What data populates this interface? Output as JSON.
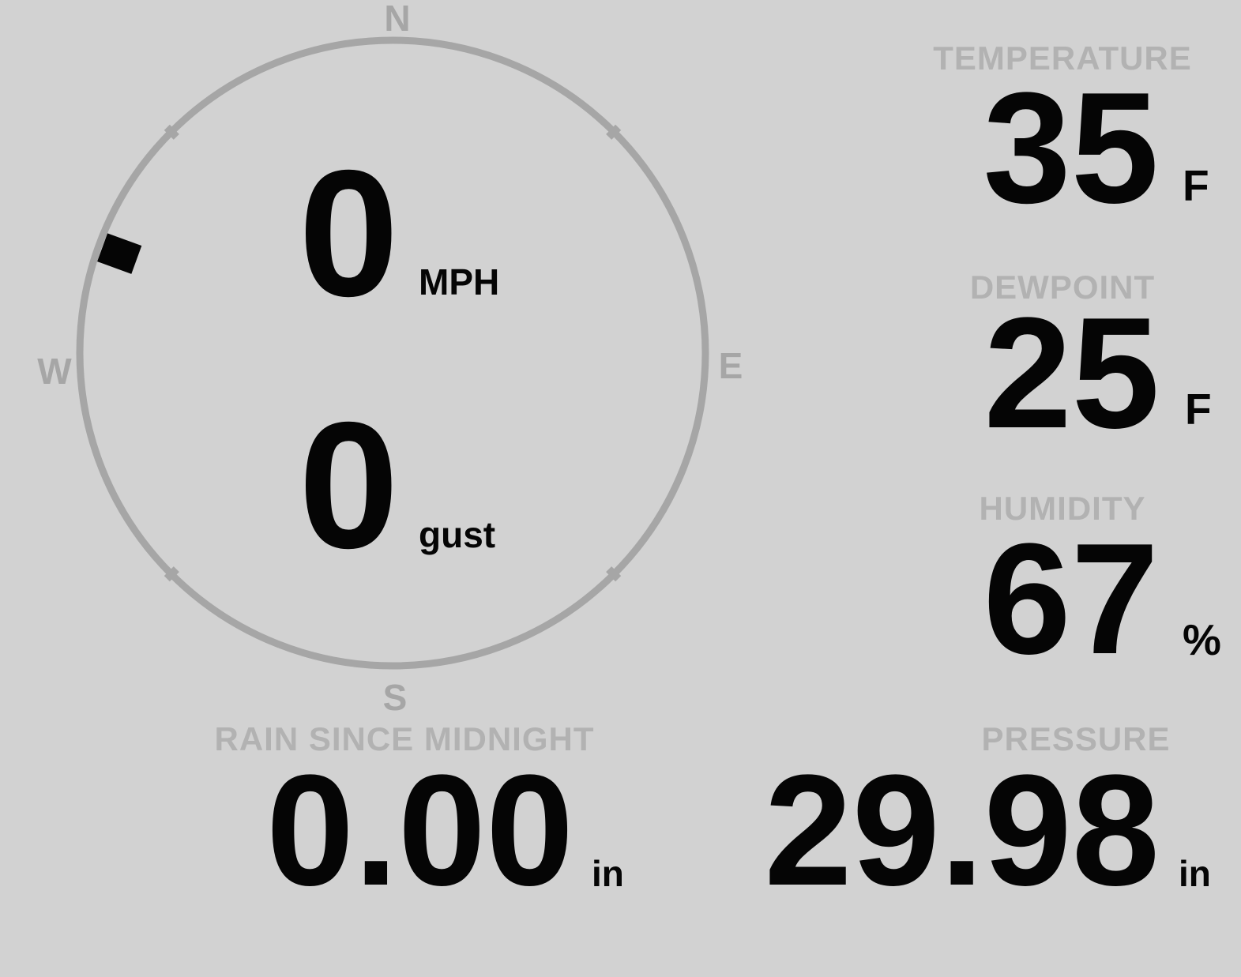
{
  "colors": {
    "background": "#d2d2d2",
    "dial": "#a6a6a6",
    "label": "#b2b2b2",
    "value": "#050505"
  },
  "wind": {
    "speed": "0",
    "speed_unit": "MPH",
    "gust": "0",
    "gust_unit": "gust",
    "direction_deg": 290,
    "cardinals": {
      "n": "N",
      "e": "E",
      "s": "S",
      "w": "W"
    }
  },
  "measurements": {
    "temperature": {
      "label": "TEMPERATURE",
      "value": "35",
      "unit": "F"
    },
    "dewpoint": {
      "label": "DEWPOINT",
      "value": "25",
      "unit": "F"
    },
    "humidity": {
      "label": "HUMIDITY",
      "value": "67",
      "unit": "%"
    },
    "rain": {
      "label": "RAIN SINCE MIDNIGHT",
      "value": "0.00",
      "unit": "in"
    },
    "pressure": {
      "label": "PRESSURE",
      "value": "29.98",
      "unit": "in"
    }
  }
}
